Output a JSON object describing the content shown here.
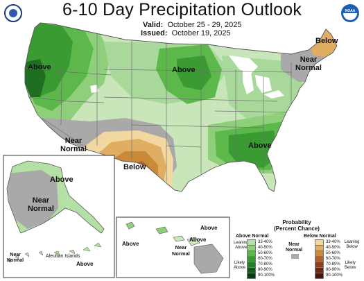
{
  "title": "6-10 Day Precipitation Outlook",
  "valid_label": "Valid:",
  "valid_value": "October 25 - 29, 2025",
  "issued_label": "Issued:",
  "issued_value": "October 19, 2025",
  "logos": {
    "left_seal": "NOAA/DOC seal",
    "right_logo": "NOAA",
    "right_logo_text": "NOAA"
  },
  "map_labels": {
    "above_northwest": "Above",
    "above_north_central": "Above",
    "above_southeast": "Above",
    "below_northeast": "Below",
    "near_normal_northeast": [
      "Near",
      "Normal"
    ],
    "near_normal_southwest": [
      "Near",
      "Normal"
    ],
    "below_southwest": "Below"
  },
  "alaska": {
    "above": "Above",
    "near_normal": [
      "Near",
      "Normal"
    ],
    "aleutian_title": "Aleutian Islands",
    "aleutian_near_normal": [
      "Near",
      "Normal"
    ],
    "aleutian_above": "Above"
  },
  "hawaii": {
    "above_left": "Above",
    "above_right": "Above",
    "above_bottom": "Above",
    "near_normal": [
      "Near",
      "Normal"
    ]
  },
  "legend": {
    "title": [
      "Probability",
      "(Percent Chance)"
    ],
    "above_header": "Above Normal",
    "near_header": [
      "Near",
      "Normal"
    ],
    "below_header": "Below Normal",
    "leaning_above": [
      "Leaning",
      "Above"
    ],
    "likely_above": [
      "Likely",
      "Above"
    ],
    "leaning_below": [
      "Leaning",
      "Below"
    ],
    "likely_below": [
      "Likely",
      "Below"
    ],
    "above_bins": [
      {
        "label": "33-40%",
        "color": "#b5e0a5"
      },
      {
        "label": "40-50%",
        "color": "#8fcf7c"
      },
      {
        "label": "50-60%",
        "color": "#5cb84a"
      },
      {
        "label": "60-70%",
        "color": "#3b9b33"
      },
      {
        "label": "70-80%",
        "color": "#257d25"
      },
      {
        "label": "80-90%",
        "color": "#14591a"
      },
      {
        "label": "90-100%",
        "color": "#0a3a0f"
      }
    ],
    "near_color": "#a9a9a9",
    "below_bins": [
      {
        "label": "33-40%",
        "color": "#f3d7a0"
      },
      {
        "label": "40-50%",
        "color": "#dfae62"
      },
      {
        "label": "50-60%",
        "color": "#c98a3a"
      },
      {
        "label": "60-70%",
        "color": "#b35f2b"
      },
      {
        "label": "70-80%",
        "color": "#8e3f1c"
      },
      {
        "label": "80-90%",
        "color": "#6b2a14"
      },
      {
        "label": "90-100%",
        "color": "#42180a"
      }
    ]
  },
  "colors": {
    "green_lightest": "#c8e6b9",
    "green_light": "#8fcf7c",
    "green_mid": "#5cb84a",
    "green_dark": "#3b9b33",
    "green_darker": "#1f6e22",
    "gray": "#a9a9a9",
    "tan_light": "#f3d7a0",
    "tan": "#dfae62",
    "brown": "#c98a3a",
    "brown_dark": "#b35f2b",
    "water": "#ffffff"
  }
}
